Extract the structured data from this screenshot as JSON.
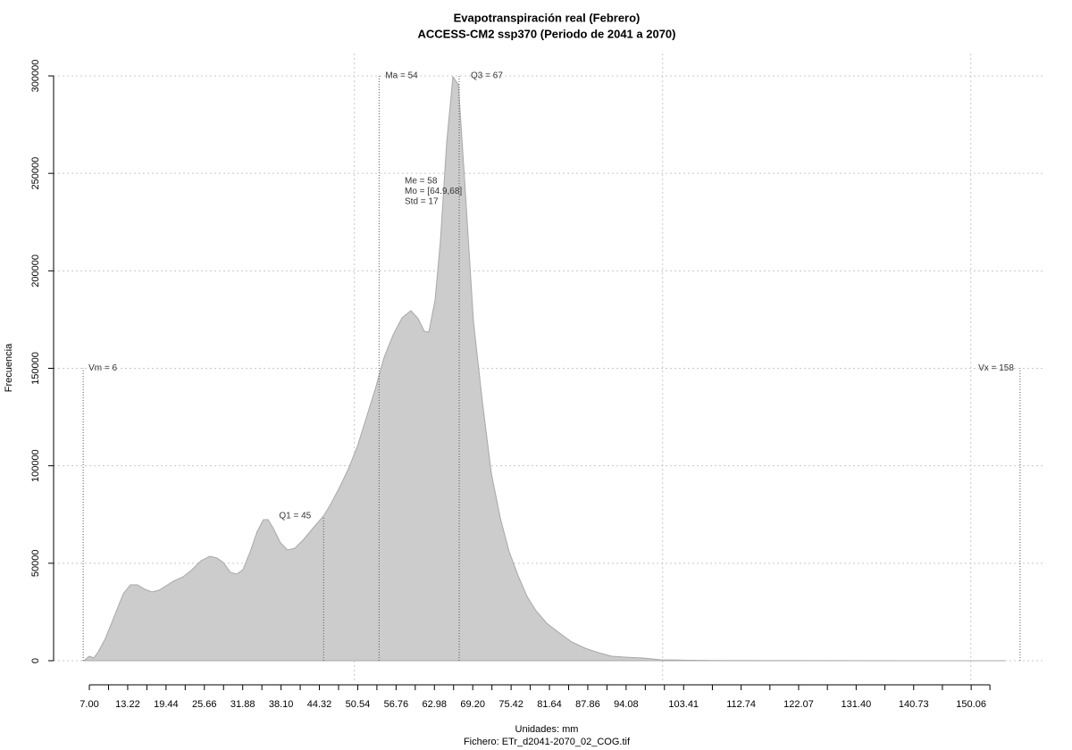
{
  "chart_data": {
    "type": "area",
    "title": "Evapotranspiración real (Febrero)",
    "subtitle": "ACCESS-CM2 ssp370 (Periodo de 2041 a 2070)",
    "x_label": "Unidades: mm",
    "caption": "Fichero: ETr_d2041-2070_02_COG.tif",
    "y_label": "Frecuencia",
    "color": "#cccccc",
    "x": [
      6.13,
      7.0,
      7.72,
      8.45,
      9.61,
      11.06,
      12.51,
      13.67,
      14.83,
      15.99,
      17.14,
      18.3,
      19.46,
      20.62,
      22.22,
      23.67,
      25.12,
      26.57,
      27.72,
      28.74,
      29.9,
      30.91,
      31.93,
      33.09,
      34.25,
      35.26,
      35.99,
      36.86,
      38.01,
      39.17,
      40.33,
      41.78,
      43.23,
      44.97,
      46.13,
      47.58,
      49.03,
      50.48,
      51.93,
      53.38,
      54.83,
      56.28,
      57.72,
      59.17,
      60.33,
      61.35,
      62.07,
      63.09,
      63.96,
      64.97,
      65.99,
      66.86,
      67.87,
      69.32,
      70.77,
      72.22,
      73.67,
      75.12,
      76.57,
      78.01,
      79.46,
      81.2,
      83.09,
      85.26,
      87.43,
      89.61,
      91.78,
      93.96,
      96.86,
      99.75,
      102.65,
      108.45,
      122.94,
      155.55
    ],
    "values": [
      0,
      2290,
      1400,
      4600,
      11450,
      22900,
      34350,
      38930,
      38930,
      36640,
      35260,
      36180,
      38470,
      40760,
      43050,
      46710,
      51290,
      53580,
      52670,
      50380,
      45340,
      44420,
      46710,
      55870,
      66400,
      72360,
      72360,
      67780,
      60450,
      56780,
      57700,
      62280,
      67780,
      74190,
      80140,
      88840,
      98460,
      109900,
      124600,
      139250,
      155700,
      167200,
      175900,
      179600,
      175500,
      169000,
      168500,
      185000,
      215300,
      265700,
      299600,
      295500,
      247300,
      174000,
      132800,
      96200,
      73300,
      55900,
      43500,
      33000,
      25650,
      19240,
      14660,
      9620,
      6410,
      4120,
      2290,
      1830,
      1370,
      460,
      300,
      100,
      50,
      0
    ],
    "xlim": [
      1.2,
      162.07
    ],
    "ylim": [
      -11450,
      311450
    ],
    "xticks": [
      {
        "value": 7.0,
        "label": "7.00"
      },
      {
        "value": 13.22,
        "label": "13.22"
      },
      {
        "value": 19.44,
        "label": "19.44"
      },
      {
        "value": 25.66,
        "label": "25.66"
      },
      {
        "value": 31.88,
        "label": "31.88"
      },
      {
        "value": 38.1,
        "label": "38.10"
      },
      {
        "value": 44.32,
        "label": "44.32"
      },
      {
        "value": 50.54,
        "label": "50.54"
      },
      {
        "value": 56.76,
        "label": "56.76"
      },
      {
        "value": 62.98,
        "label": "62.98"
      },
      {
        "value": 69.2,
        "label": "69.20"
      },
      {
        "value": 75.42,
        "label": "75.42"
      },
      {
        "value": 81.64,
        "label": "81.64"
      },
      {
        "value": 87.86,
        "label": "87.86"
      },
      {
        "value": 94.08,
        "label": "94.08"
      },
      {
        "value": 103.41,
        "label": "103.41"
      },
      {
        "value": 112.74,
        "label": "112.74"
      },
      {
        "value": 122.07,
        "label": "122.07"
      },
      {
        "value": 131.4,
        "label": "131.40"
      },
      {
        "value": 140.73,
        "label": "140.73"
      },
      {
        "value": 150.06,
        "label": "150.06"
      }
    ],
    "xminorticks": [
      10.11,
      16.33,
      22.55,
      28.77,
      34.99,
      41.21,
      47.43,
      53.65,
      59.87,
      66.09,
      72.31,
      78.53,
      84.75,
      90.97,
      97.19,
      100.3,
      108.075,
      117.405,
      126.735,
      136.065,
      145.395,
      153.1
    ],
    "xgrid": [
      50,
      100,
      150
    ],
    "yticks": [
      0,
      50000,
      100000,
      150000,
      200000,
      250000,
      300000
    ],
    "grid": true,
    "vlines": [
      {
        "label": "Vm = 6",
        "x": 6,
        "top": 150000
      },
      {
        "label": "Q1 = 45",
        "x": 45,
        "top": 74190
      },
      {
        "label": "Ma = 54",
        "x": 54,
        "top": 300000
      },
      {
        "label": "Q3 = 67",
        "x": 67,
        "top": 300000
      },
      {
        "label": "Vx = 158",
        "x": 158,
        "top": 150000
      }
    ],
    "annotations": [
      "Me = 58",
      "Mo = [64.9,68]",
      "Std = 17"
    ]
  }
}
